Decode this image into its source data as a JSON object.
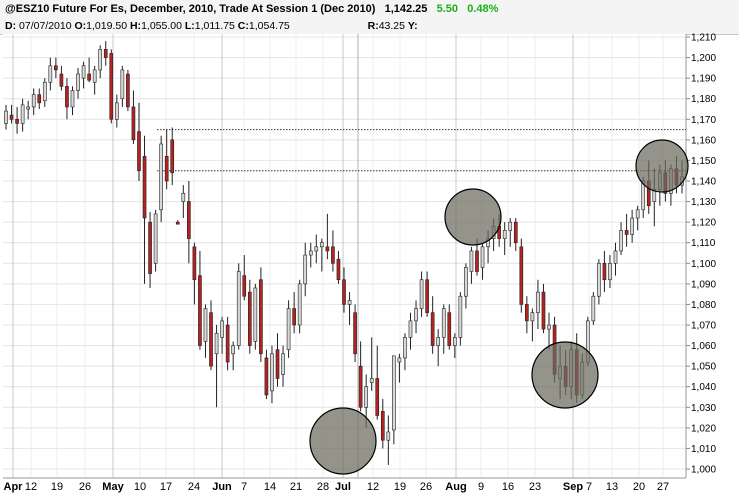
{
  "header": {
    "symbol_title": "@ESZ10 Future For Es, December, 2010, Trade At Session 1 (Dec 2010)",
    "last_price": "1,142.25",
    "change": "5.50",
    "change_pct": "0.48%",
    "change_color": "#19b019",
    "ohlc": {
      "d_label": "D:",
      "d_value": "07/07/2010",
      "o_label": "O:",
      "o_value": "1,019.50",
      "h_label": "H:",
      "h_value": "1,055.00",
      "l_label": "L:",
      "l_value": "1,011.75",
      "c_label": "C:",
      "c_value": "1,054.75",
      "r_label": "R:",
      "r_value": "43.25",
      "y_label": "Y:"
    }
  },
  "chart_data": {
    "type": "candlestick",
    "title": "@ESZ10 Future For Es, December, 2010, Trade At Session 1 (Dec 2010)",
    "ylim": [
      1000,
      1210
    ],
    "yticks": [
      "1,000",
      "1,010",
      "1,020",
      "1,030",
      "1,040",
      "1,050",
      "1,060",
      "1,070",
      "1,080",
      "1,090",
      "1,100",
      "1,110",
      "1,120",
      "1,130",
      "1,140",
      "1,150",
      "1,160",
      "1,170",
      "1,180",
      "1,190",
      "1,200",
      "1,210"
    ],
    "xticks": [
      "Apr",
      "12",
      "19",
      "26",
      "May",
      "10",
      "17",
      "24",
      "Jun",
      "7",
      "14",
      "21",
      "28",
      "Jul",
      "12",
      "19",
      "26",
      "Aug",
      "9",
      "16",
      "23",
      "Sep",
      "7",
      "13",
      "20",
      "27"
    ],
    "bold_xticks": [
      "Apr",
      "May",
      "Jun",
      "Jul",
      "Aug",
      "Sep"
    ],
    "grid": true,
    "up_color": "#d8d8d8",
    "down_color": "#b52222",
    "annotations": {
      "resistance_lines": [
        1165,
        1145
      ],
      "circles_color": "#6b6b5e"
    },
    "candles": [
      {
        "o": 1168,
        "h": 1177,
        "l": 1165,
        "c": 1174
      },
      {
        "o": 1172,
        "h": 1177,
        "l": 1168,
        "c": 1170
      },
      {
        "o": 1170,
        "h": 1176,
        "l": 1163,
        "c": 1168
      },
      {
        "o": 1168,
        "h": 1180,
        "l": 1164,
        "c": 1177
      },
      {
        "o": 1175,
        "h": 1179,
        "l": 1170,
        "c": 1176
      },
      {
        "o": 1176,
        "h": 1185,
        "l": 1172,
        "c": 1182
      },
      {
        "o": 1182,
        "h": 1185,
        "l": 1175,
        "c": 1178
      },
      {
        "o": 1179,
        "h": 1190,
        "l": 1176,
        "c": 1188
      },
      {
        "o": 1188,
        "h": 1200,
        "l": 1184,
        "c": 1196
      },
      {
        "o": 1196,
        "h": 1200,
        "l": 1190,
        "c": 1194
      },
      {
        "o": 1192,
        "h": 1196,
        "l": 1184,
        "c": 1186
      },
      {
        "o": 1186,
        "h": 1190,
        "l": 1170,
        "c": 1176
      },
      {
        "o": 1176,
        "h": 1186,
        "l": 1172,
        "c": 1184
      },
      {
        "o": 1184,
        "h": 1195,
        "l": 1180,
        "c": 1192
      },
      {
        "o": 1190,
        "h": 1198,
        "l": 1185,
        "c": 1196
      },
      {
        "o": 1192,
        "h": 1200,
        "l": 1188,
        "c": 1189
      },
      {
        "o": 1188,
        "h": 1196,
        "l": 1182,
        "c": 1194
      },
      {
        "o": 1194,
        "h": 1206,
        "l": 1190,
        "c": 1204
      },
      {
        "o": 1204,
        "h": 1208,
        "l": 1196,
        "c": 1200
      },
      {
        "o": 1202,
        "h": 1204,
        "l": 1168,
        "c": 1170
      },
      {
        "o": 1170,
        "h": 1182,
        "l": 1166,
        "c": 1178
      },
      {
        "o": 1180,
        "h": 1196,
        "l": 1176,
        "c": 1194
      },
      {
        "o": 1192,
        "h": 1194,
        "l": 1174,
        "c": 1176
      },
      {
        "o": 1176,
        "h": 1184,
        "l": 1158,
        "c": 1160
      },
      {
        "o": 1164,
        "h": 1178,
        "l": 1140,
        "c": 1145
      },
      {
        "o": 1152,
        "h": 1162,
        "l": 1090,
        "c": 1122
      },
      {
        "o": 1120,
        "h": 1125,
        "l": 1088,
        "c": 1095
      },
      {
        "o": 1100,
        "h": 1126,
        "l": 1096,
        "c": 1124
      },
      {
        "o": 1126,
        "h": 1162,
        "l": 1120,
        "c": 1158
      },
      {
        "o": 1152,
        "h": 1165,
        "l": 1136,
        "c": 1140
      },
      {
        "o": 1160,
        "h": 1166,
        "l": 1138,
        "c": 1144
      },
      {
        "o": 1120,
        "h": 1121,
        "l": 1119,
        "c": 1119
      },
      {
        "o": 1130,
        "h": 1138,
        "l": 1122,
        "c": 1134
      },
      {
        "o": 1130,
        "h": 1140,
        "l": 1100,
        "c": 1112
      },
      {
        "o": 1108,
        "h": 1110,
        "l": 1080,
        "c": 1092
      },
      {
        "o": 1094,
        "h": 1106,
        "l": 1058,
        "c": 1060
      },
      {
        "o": 1062,
        "h": 1080,
        "l": 1054,
        "c": 1078
      },
      {
        "o": 1076,
        "h": 1082,
        "l": 1048,
        "c": 1050
      },
      {
        "o": 1056,
        "h": 1070,
        "l": 1030,
        "c": 1066
      },
      {
        "o": 1064,
        "h": 1074,
        "l": 1056,
        "c": 1072
      },
      {
        "o": 1070,
        "h": 1074,
        "l": 1048,
        "c": 1052
      },
      {
        "o": 1056,
        "h": 1062,
        "l": 1048,
        "c": 1060
      },
      {
        "o": 1060,
        "h": 1100,
        "l": 1058,
        "c": 1096
      },
      {
        "o": 1094,
        "h": 1104,
        "l": 1082,
        "c": 1084
      },
      {
        "o": 1086,
        "h": 1092,
        "l": 1056,
        "c": 1060
      },
      {
        "o": 1062,
        "h": 1090,
        "l": 1058,
        "c": 1088
      },
      {
        "o": 1092,
        "h": 1098,
        "l": 1052,
        "c": 1056
      },
      {
        "o": 1054,
        "h": 1058,
        "l": 1034,
        "c": 1036
      },
      {
        "o": 1038,
        "h": 1060,
        "l": 1032,
        "c": 1056
      },
      {
        "o": 1058,
        "h": 1066,
        "l": 1040,
        "c": 1044
      },
      {
        "o": 1046,
        "h": 1060,
        "l": 1040,
        "c": 1056
      },
      {
        "o": 1058,
        "h": 1082,
        "l": 1054,
        "c": 1078
      },
      {
        "o": 1078,
        "h": 1086,
        "l": 1066,
        "c": 1070
      },
      {
        "o": 1070,
        "h": 1092,
        "l": 1066,
        "c": 1090
      },
      {
        "o": 1090,
        "h": 1110,
        "l": 1084,
        "c": 1104
      },
      {
        "o": 1104,
        "h": 1110,
        "l": 1098,
        "c": 1106
      },
      {
        "o": 1106,
        "h": 1114,
        "l": 1100,
        "c": 1108
      },
      {
        "o": 1108,
        "h": 1112,
        "l": 1096,
        "c": 1110
      },
      {
        "o": 1108,
        "h": 1124,
        "l": 1102,
        "c": 1106
      },
      {
        "o": 1108,
        "h": 1116,
        "l": 1096,
        "c": 1100
      },
      {
        "o": 1102,
        "h": 1106,
        "l": 1090,
        "c": 1092
      },
      {
        "o": 1092,
        "h": 1098,
        "l": 1076,
        "c": 1080
      },
      {
        "o": 1080,
        "h": 1086,
        "l": 1070,
        "c": 1082
      },
      {
        "o": 1076,
        "h": 1080,
        "l": 1052,
        "c": 1056
      },
      {
        "o": 1050,
        "h": 1062,
        "l": 1028,
        "c": 1030
      },
      {
        "o": 1030,
        "h": 1046,
        "l": 1020,
        "c": 1040
      },
      {
        "o": 1042,
        "h": 1064,
        "l": 1038,
        "c": 1044
      },
      {
        "o": 1044,
        "h": 1060,
        "l": 1024,
        "c": 1026
      },
      {
        "o": 1028,
        "h": 1034,
        "l": 1010,
        "c": 1014
      },
      {
        "o": 1014,
        "h": 1026,
        "l": 1002,
        "c": 1018
      },
      {
        "o": 1019,
        "h": 1055,
        "l": 1012,
        "c": 1055
      },
      {
        "o": 1052,
        "h": 1056,
        "l": 1042,
        "c": 1054
      },
      {
        "o": 1054,
        "h": 1066,
        "l": 1048,
        "c": 1064
      },
      {
        "o": 1064,
        "h": 1076,
        "l": 1058,
        "c": 1072
      },
      {
        "o": 1072,
        "h": 1082,
        "l": 1066,
        "c": 1078
      },
      {
        "o": 1078,
        "h": 1096,
        "l": 1074,
        "c": 1092
      },
      {
        "o": 1092,
        "h": 1096,
        "l": 1074,
        "c": 1076
      },
      {
        "o": 1076,
        "h": 1084,
        "l": 1056,
        "c": 1060
      },
      {
        "o": 1060,
        "h": 1068,
        "l": 1050,
        "c": 1064
      },
      {
        "o": 1064,
        "h": 1080,
        "l": 1056,
        "c": 1078
      },
      {
        "o": 1076,
        "h": 1080,
        "l": 1058,
        "c": 1060
      },
      {
        "o": 1060,
        "h": 1066,
        "l": 1054,
        "c": 1064
      },
      {
        "o": 1064,
        "h": 1086,
        "l": 1060,
        "c": 1084
      },
      {
        "o": 1084,
        "h": 1100,
        "l": 1078,
        "c": 1098
      },
      {
        "o": 1096,
        "h": 1108,
        "l": 1090,
        "c": 1106
      },
      {
        "o": 1106,
        "h": 1112,
        "l": 1094,
        "c": 1096
      },
      {
        "o": 1098,
        "h": 1110,
        "l": 1092,
        "c": 1108
      },
      {
        "o": 1108,
        "h": 1116,
        "l": 1100,
        "c": 1112
      },
      {
        "o": 1112,
        "h": 1122,
        "l": 1106,
        "c": 1118
      },
      {
        "o": 1118,
        "h": 1124,
        "l": 1108,
        "c": 1112
      },
      {
        "o": 1112,
        "h": 1120,
        "l": 1104,
        "c": 1116
      },
      {
        "o": 1116,
        "h": 1122,
        "l": 1108,
        "c": 1120
      },
      {
        "o": 1120,
        "h": 1122,
        "l": 1106,
        "c": 1110
      },
      {
        "o": 1108,
        "h": 1112,
        "l": 1076,
        "c": 1080
      },
      {
        "o": 1080,
        "h": 1084,
        "l": 1066,
        "c": 1072
      },
      {
        "o": 1072,
        "h": 1078,
        "l": 1062,
        "c": 1076
      },
      {
        "o": 1076,
        "h": 1092,
        "l": 1068,
        "c": 1086
      },
      {
        "o": 1086,
        "h": 1090,
        "l": 1066,
        "c": 1068
      },
      {
        "o": 1068,
        "h": 1076,
        "l": 1058,
        "c": 1070
      },
      {
        "o": 1070,
        "h": 1074,
        "l": 1042,
        "c": 1046
      },
      {
        "o": 1044,
        "h": 1060,
        "l": 1034,
        "c": 1050
      },
      {
        "o": 1050,
        "h": 1058,
        "l": 1036,
        "c": 1040
      },
      {
        "o": 1040,
        "h": 1062,
        "l": 1034,
        "c": 1058
      },
      {
        "o": 1058,
        "h": 1066,
        "l": 1032,
        "c": 1036
      },
      {
        "o": 1036,
        "h": 1056,
        "l": 1034,
        "c": 1052
      },
      {
        "o": 1052,
        "h": 1074,
        "l": 1050,
        "c": 1072
      },
      {
        "o": 1072,
        "h": 1086,
        "l": 1070,
        "c": 1084
      },
      {
        "o": 1084,
        "h": 1102,
        "l": 1080,
        "c": 1100
      },
      {
        "o": 1100,
        "h": 1106,
        "l": 1086,
        "c": 1092
      },
      {
        "o": 1092,
        "h": 1104,
        "l": 1088,
        "c": 1100
      },
      {
        "o": 1100,
        "h": 1110,
        "l": 1094,
        "c": 1106
      },
      {
        "o": 1106,
        "h": 1120,
        "l": 1104,
        "c": 1116
      },
      {
        "o": 1116,
        "h": 1124,
        "l": 1108,
        "c": 1114
      },
      {
        "o": 1114,
        "h": 1126,
        "l": 1110,
        "c": 1122
      },
      {
        "o": 1122,
        "h": 1128,
        "l": 1116,
        "c": 1126
      },
      {
        "o": 1126,
        "h": 1142,
        "l": 1122,
        "c": 1140
      },
      {
        "o": 1140,
        "h": 1150,
        "l": 1124,
        "c": 1128
      },
      {
        "o": 1130,
        "h": 1146,
        "l": 1118,
        "c": 1136
      },
      {
        "o": 1136,
        "h": 1148,
        "l": 1128,
        "c": 1144
      },
      {
        "o": 1144,
        "h": 1150,
        "l": 1130,
        "c": 1134
      },
      {
        "o": 1134,
        "h": 1148,
        "l": 1128,
        "c": 1146
      },
      {
        "o": 1146,
        "h": 1152,
        "l": 1134,
        "c": 1138
      },
      {
        "o": 1138,
        "h": 1150,
        "l": 1134,
        "c": 1142
      }
    ]
  }
}
